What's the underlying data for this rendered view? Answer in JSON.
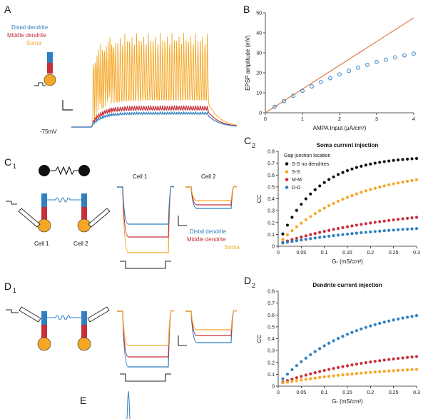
{
  "colors": {
    "distal": "#2f7fc1",
    "middle": "#c62f3b",
    "soma": "#f5a623",
    "ss_nodend": "#111111",
    "model_line": "#e07a4f"
  },
  "panel_labels": {
    "A": "A",
    "B": "B",
    "C1": "C",
    "C1_sub": "1",
    "C2": "C",
    "C2_sub": "2",
    "D1": "D",
    "D1_sub": "1",
    "D2": "D",
    "D2_sub": "2",
    "E": "E"
  },
  "panel_A": {
    "legend": [
      "Distal dendrite",
      "Middle dendrite",
      "Soma"
    ],
    "resting_label": "-75mV"
  },
  "panel_C1": {
    "cell1_label": "Cell 1",
    "cell2_label": "Cell 2",
    "trace_cell1_title": "Cell 1",
    "trace_cell2_title": "Cell 2",
    "legend": [
      "Distal dendrite",
      "Middle dendrite",
      "Soma"
    ]
  },
  "chart_data": [
    {
      "id": "B",
      "type": "scatter",
      "xlabel": "AMPA Input (μA/cm²)",
      "ylabel": "EPSP amplitude (mV)",
      "xlim": [
        0,
        4
      ],
      "ylim": [
        0,
        50
      ],
      "xticks": [
        0,
        1,
        2,
        3,
        4
      ],
      "yticks": [
        0,
        10,
        20,
        30,
        40,
        50
      ],
      "line": {
        "x": [
          0,
          4
        ],
        "y": [
          0,
          47.5
        ]
      },
      "x": [
        0.25,
        0.5,
        0.75,
        1.0,
        1.25,
        1.5,
        1.75,
        2.0,
        2.25,
        2.5,
        2.75,
        3.0,
        3.25,
        3.5,
        3.75,
        4.0
      ],
      "y": [
        3.0,
        5.8,
        8.5,
        11.0,
        13.2,
        15.3,
        17.3,
        19.2,
        21.0,
        22.6,
        24.0,
        25.4,
        26.6,
        27.7,
        28.7,
        29.6
      ]
    },
    {
      "id": "C2",
      "type": "scatter",
      "title": "Soma current injection",
      "xlabel": "Gₜ (mS/cm²)",
      "ylabel": "CC",
      "legend_title": "Gap junction location",
      "xlim": [
        0,
        0.3
      ],
      "ylim": [
        0,
        0.8
      ],
      "xticks": [
        0,
        0.05,
        0.1,
        0.15,
        0.2,
        0.25,
        0.3
      ],
      "yticks": [
        0,
        0.1,
        0.2,
        0.3,
        0.4,
        0.5,
        0.6,
        0.7,
        0.8
      ],
      "series": [
        {
          "name": "S-S no dendrites",
          "color": "#111111",
          "k": 12.0,
          "amp": 0.74
        },
        {
          "name": "S-S",
          "color": "#f5a623",
          "k": 6.5,
          "amp": 0.63
        },
        {
          "name": "M-M",
          "color": "#c62f3b",
          "k": 4.0,
          "amp": 0.32
        },
        {
          "name": "D-D",
          "color": "#2f7fc1",
          "k": 3.8,
          "amp": 0.19
        }
      ],
      "x_values": [
        0.01,
        0.02,
        0.03,
        0.04,
        0.05,
        0.06,
        0.07,
        0.08,
        0.09,
        0.1,
        0.11,
        0.12,
        0.13,
        0.14,
        0.15,
        0.16,
        0.17,
        0.18,
        0.19,
        0.2,
        0.21,
        0.22,
        0.23,
        0.24,
        0.25,
        0.26,
        0.27,
        0.28,
        0.29,
        0.3
      ]
    },
    {
      "id": "D2",
      "type": "scatter",
      "title": "Dendrite current injection",
      "xlabel": "Gₜ (mS/cm²)",
      "ylabel": "CC",
      "xlim": [
        0,
        0.3
      ],
      "ylim": [
        0,
        0.8
      ],
      "xticks": [
        0,
        0.05,
        0.1,
        0.15,
        0.2,
        0.25,
        0.3
      ],
      "yticks": [
        0,
        0.1,
        0.2,
        0.3,
        0.4,
        0.5,
        0.6,
        0.7,
        0.8
      ],
      "series": [
        {
          "color": "#2f7fc1",
          "k": 6.5,
          "amp": 0.67
        },
        {
          "color": "#c62f3b",
          "k": 4.5,
          "amp": 0.31
        },
        {
          "color": "#f5a623",
          "k": 4.2,
          "amp": 0.17
        }
      ],
      "x_values": [
        0.01,
        0.02,
        0.03,
        0.04,
        0.05,
        0.06,
        0.07,
        0.08,
        0.09,
        0.1,
        0.11,
        0.12,
        0.13,
        0.14,
        0.15,
        0.16,
        0.17,
        0.18,
        0.19,
        0.2,
        0.21,
        0.22,
        0.23,
        0.24,
        0.25,
        0.26,
        0.27,
        0.28,
        0.29,
        0.3
      ]
    }
  ]
}
